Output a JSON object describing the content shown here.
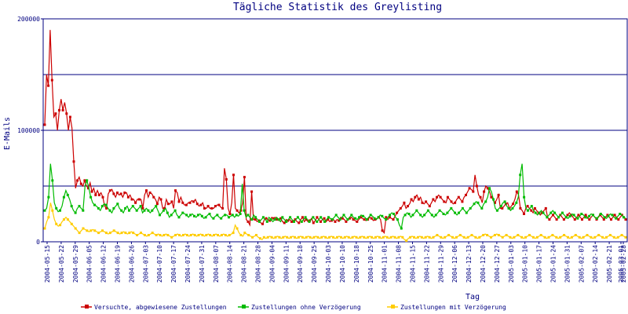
{
  "chart_data": {
    "type": "line",
    "title": "Tägliche Statistik des Greylisting",
    "xlabel": "Tag",
    "ylabel": "E-Mails",
    "ylim": [
      0,
      200000
    ],
    "y_ticks": [
      "0",
      "100000",
      "200000"
    ],
    "gridlines_y": [
      50000,
      100000,
      150000
    ],
    "x_tick_labels": [
      "2004-05-15",
      "2004-05-22",
      "2004-05-29",
      "2004-06-05",
      "2004-06-12",
      "2004-06-19",
      "2004-06-26",
      "2004-07-03",
      "2004-07-10",
      "2004-07-17",
      "2004-07-24",
      "2004-07-31",
      "2004-08-07",
      "2004-08-14",
      "2004-08-21",
      "2004-08-28",
      "2004-09-04",
      "2004-09-11",
      "2004-09-18",
      "2004-09-25",
      "2004-10-03",
      "2004-10-10",
      "2004-10-18",
      "2004-10-25",
      "2004-11-01",
      "2004-11-08",
      "2004-11-15",
      "2004-11-22",
      "2004-11-29",
      "2004-12-06",
      "2004-12-13",
      "2004-12-20",
      "2004-12-27",
      "2005-01-03",
      "2005-01-10",
      "2005-01-17",
      "2005-01-24",
      "2005-01-31",
      "2005-02-07",
      "2005-02-14",
      "2005-02-21",
      "2005-02-28",
      "2005-03-01"
    ],
    "legend_position": "bottom",
    "series": [
      {
        "name": "Versuchte, abgewiesene Zustellungen",
        "color": "#cc0000",
        "values": [
          105000,
          150000,
          140000,
          190000,
          145000,
          112000,
          115000,
          100000,
          118000,
          128000,
          118000,
          125000,
          115000,
          100000,
          112000,
          102000,
          72000,
          48000,
          55000,
          58000,
          52000,
          50000,
          55000,
          50000,
          48000,
          53000,
          45000,
          48000,
          42000,
          46000,
          42000,
          44000,
          40000,
          32000,
          30000,
          43000,
          46000,
          47000,
          43000,
          40000,
          44000,
          42000,
          43000,
          40000,
          44000,
          44000,
          40000,
          42000,
          38000,
          38000,
          35000,
          38000,
          38000,
          38000,
          30000,
          42000,
          46000,
          40000,
          44000,
          43000,
          40000,
          38000,
          34000,
          40000,
          38000,
          30000,
          30000,
          38000,
          34000,
          34000,
          36000,
          30000,
          46000,
          44000,
          36000,
          40000,
          35000,
          33000,
          33000,
          35000,
          35000,
          37000,
          36000,
          38000,
          34000,
          32000,
          33000,
          35000,
          30000,
          30000,
          32000,
          30000,
          30000,
          30000,
          32000,
          33000,
          33000,
          31000,
          30000,
          66000,
          56000,
          30000,
          25000,
          35000,
          60000,
          30000,
          28000,
          26000,
          28000,
          35000,
          58000,
          20000,
          18000,
          15000,
          45000,
          20000,
          20000,
          18000,
          19000,
          17000,
          16000,
          20000,
          21000,
          20000,
          19000,
          22000,
          21000,
          22000,
          20000,
          19000,
          21000,
          18000,
          17000,
          20000,
          19000,
          20000,
          18000,
          19000,
          20000,
          18000,
          17000,
          20000,
          22000,
          18000,
          20000,
          18000,
          19000,
          21000,
          17000,
          19000,
          22000,
          20000,
          18000,
          20000,
          21000,
          18000,
          20000,
          18000,
          19000,
          20000,
          18000,
          20000,
          19000,
          22000,
          21000,
          20000,
          18000,
          20000,
          21000,
          22000,
          20000,
          19000,
          18000,
          20000,
          22000,
          21000,
          20000,
          19000,
          20000,
          22000,
          21000,
          19000,
          20000,
          21000,
          22000,
          20000,
          10000,
          8000,
          22000,
          20000,
          22000,
          21000,
          20000,
          23000,
          26000,
          28000,
          30000,
          32000,
          35000,
          30000,
          32000,
          34000,
          38000,
          36000,
          40000,
          42000,
          38000,
          40000,
          35000,
          34000,
          36000,
          34000,
          32000,
          35000,
          38000,
          36000,
          40000,
          42000,
          40000,
          38000,
          36000,
          35000,
          40000,
          38000,
          36000,
          34000,
          35000,
          38000,
          40000,
          38000,
          36000,
          40000,
          42000,
          45000,
          48000,
          47000,
          45000,
          60000,
          50000,
          42000,
          40000,
          35000,
          45000,
          50000,
          48000,
          45000,
          40000,
          38000,
          35000,
          38000,
          42000,
          30000,
          30000,
          32000,
          34000,
          35000,
          30000,
          32000,
          34000,
          38000,
          45000,
          42000,
          30000,
          28000,
          25000,
          30000,
          32000,
          30000,
          28000,
          26000,
          30000,
          28000,
          26000,
          24000,
          26000,
          28000,
          30000,
          22000,
          20000,
          22000,
          24000,
          22000,
          20000,
          22000,
          24000,
          22000,
          20000,
          22000,
          24000,
          26000,
          24000,
          22000,
          20000,
          22000,
          24000,
          22000,
          20000,
          22000,
          24000,
          22000,
          20000,
          22000,
          24000,
          22000,
          20000,
          22000,
          24000,
          22000,
          20000,
          22000,
          24000,
          22000,
          20000,
          22000,
          24000,
          22000,
          20000,
          22000,
          24000,
          22000,
          20000
        ]
      },
      {
        "name": "Zustellungen ohne Verzögerung",
        "color": "#00bb00",
        "values": [
          28000,
          30000,
          40000,
          70000,
          55000,
          35000,
          30000,
          27000,
          28000,
          32000,
          40000,
          46000,
          42000,
          38000,
          32000,
          28000,
          26000,
          30000,
          32000,
          30000,
          28000,
          50000,
          55000,
          48000,
          40000,
          35000,
          33000,
          32000,
          30000,
          28000,
          32000,
          34000,
          33000,
          30000,
          28000,
          26000,
          30000,
          32000,
          34000,
          30000,
          28000,
          26000,
          30000,
          32000,
          28000,
          30000,
          32000,
          30000,
          28000,
          30000,
          32000,
          26000,
          28000,
          30000,
          28000,
          26000,
          28000,
          30000,
          32000,
          28000,
          24000,
          26000,
          28000,
          30000,
          26000,
          22000,
          24000,
          26000,
          28000,
          24000,
          22000,
          24000,
          26000,
          25000,
          24000,
          22000,
          24000,
          25000,
          23000,
          22000,
          24000,
          25000,
          23000,
          21000,
          22000,
          24000,
          25000,
          22000,
          21000,
          23000,
          24000,
          22000,
          21000,
          23000,
          24000,
          24000,
          22000,
          23000,
          24000,
          22000,
          24000,
          23000,
          25000,
          52000,
          28000,
          22000,
          24000,
          22000,
          20000,
          24000,
          22000,
          20000,
          18000,
          20000,
          22000,
          20000,
          18000,
          22000,
          20000,
          18000,
          20000,
          22000,
          20000,
          18000,
          22000,
          20000,
          18000,
          20000,
          22000,
          20000,
          18000,
          20000,
          22000,
          20000,
          18000,
          20000,
          22000,
          20000,
          18000,
          20000,
          22000,
          20000,
          18000,
          20000,
          22000,
          20000,
          18000,
          20000,
          22000,
          21000,
          20000,
          22000,
          24000,
          22000,
          20000,
          22000,
          24000,
          22000,
          20000,
          22000,
          24000,
          22000,
          21000,
          20000,
          22000,
          24000,
          23000,
          22000,
          20000,
          22000,
          24000,
          23000,
          21000,
          20000,
          22000,
          24000,
          23000,
          21000,
          20000,
          22000,
          24000,
          26000,
          25000,
          22000,
          20000,
          15000,
          12000,
          22000,
          24000,
          26000,
          25000,
          22000,
          24000,
          26000,
          28000,
          26000,
          24000,
          22000,
          24000,
          26000,
          28000,
          26000,
          24000,
          22000,
          24000,
          26000,
          28000,
          27000,
          25000,
          24000,
          26000,
          28000,
          30000,
          28000,
          26000,
          24000,
          26000,
          28000,
          30000,
          28000,
          26000,
          28000,
          30000,
          32000,
          34000,
          36000,
          35000,
          32000,
          30000,
          34000,
          36000,
          40000,
          48000,
          45000,
          38000,
          30000,
          28000,
          30000,
          32000,
          35000,
          36000,
          32000,
          30000,
          28000,
          30000,
          32000,
          35000,
          40000,
          60000,
          70000,
          40000,
          30000,
          28000,
          30000,
          32000,
          28000,
          26000,
          24000,
          26000,
          28000,
          26000,
          24000,
          22000,
          24000,
          26000,
          28000,
          26000,
          24000,
          22000,
          24000,
          26000,
          24000,
          22000,
          21000,
          23000,
          25000,
          24000,
          22000,
          21000,
          23000,
          25000,
          24000,
          22000,
          21000,
          23000,
          25000,
          24000,
          22000,
          21000,
          23000,
          25000,
          24000,
          22000,
          21000,
          23000,
          25000,
          24000,
          22000,
          21000,
          23000,
          25000,
          24000,
          22000,
          21000
        ]
      },
      {
        "name": "Zustellungen mit Verzögerung",
        "color": "#ffcc00",
        "values": [
          12000,
          18000,
          22000,
          35000,
          28000,
          20000,
          16000,
          14000,
          15000,
          18000,
          20000,
          22000,
          20000,
          18000,
          16000,
          14000,
          12000,
          10000,
          8000,
          10000,
          12000,
          11000,
          10000,
          9000,
          10000,
          11000,
          10000,
          9000,
          8000,
          9000,
          10000,
          9000,
          8000,
          7000,
          8000,
          9000,
          10000,
          9000,
          8000,
          7000,
          8000,
          9000,
          8000,
          7000,
          8000,
          9000,
          8000,
          7000,
          6000,
          7000,
          8000,
          7000,
          6000,
          5000,
          6000,
          7000,
          8000,
          7000,
          6000,
          7000,
          6000,
          5000,
          6000,
          7000,
          6000,
          5000,
          4000,
          5000,
          6000,
          7000,
          6000,
          5000,
          6000,
          7000,
          6000,
          5000,
          6000,
          7000,
          6000,
          5000,
          6000,
          7000,
          6000,
          5000,
          6000,
          7000,
          6000,
          5000,
          6000,
          7000,
          6000,
          5000,
          6000,
          7000,
          6000,
          5000,
          6000,
          7000,
          8000,
          15000,
          12000,
          8000,
          6000,
          5000,
          8000,
          7000,
          6000,
          5000,
          4000,
          5000,
          6000,
          4000,
          3000,
          2000,
          4000,
          3000,
          4000,
          5000,
          4000,
          3000,
          4000,
          5000,
          4000,
          3000,
          4000,
          5000,
          4000,
          3000,
          4000,
          5000,
          4000,
          3000,
          4000,
          5000,
          4000,
          3000,
          4000,
          5000,
          4000,
          3000,
          4000,
          5000,
          4000,
          3000,
          4000,
          5000,
          4000,
          3000,
          4000,
          5000,
          4000,
          3000,
          4000,
          5000,
          4000,
          3000,
          4000,
          5000,
          4000,
          3000,
          4000,
          5000,
          4000,
          3000,
          4000,
          5000,
          4000,
          3000,
          4000,
          5000,
          4000,
          3000,
          4000,
          5000,
          4000,
          3000,
          4000,
          5000,
          4000,
          3000,
          4000,
          5000,
          4000,
          3000,
          4000,
          5000,
          4000,
          2000,
          1000,
          3000,
          4000,
          5000,
          4000,
          3000,
          4000,
          5000,
          4000,
          3000,
          4000,
          5000,
          4000,
          3000,
          4000,
          5000,
          6000,
          5000,
          4000,
          3000,
          4000,
          5000,
          6000,
          5000,
          4000,
          3000,
          4000,
          5000,
          6000,
          5000,
          4000,
          3000,
          4000,
          5000,
          6000,
          5000,
          4000,
          3000,
          4000,
          5000,
          6000,
          7000,
          6000,
          5000,
          4000,
          5000,
          6000,
          7000,
          6000,
          5000,
          4000,
          5000,
          6000,
          5000,
          4000,
          3000,
          4000,
          5000,
          6000,
          5000,
          4000,
          3000,
          4000,
          5000,
          6000,
          5000,
          4000,
          3000,
          4000,
          5000,
          6000,
          5000,
          4000,
          3000,
          4000,
          5000,
          6000,
          5000,
          4000,
          3000,
          4000,
          5000,
          6000,
          5000,
          4000,
          3000,
          4000,
          5000,
          6000,
          5000,
          4000,
          3000,
          4000,
          5000,
          6000,
          5000,
          4000,
          3000,
          4000,
          5000,
          6000,
          5000,
          4000,
          3000,
          4000,
          5000,
          6000,
          5000,
          4000,
          3000,
          4000,
          5000,
          6000,
          5000,
          4000
        ]
      }
    ]
  }
}
